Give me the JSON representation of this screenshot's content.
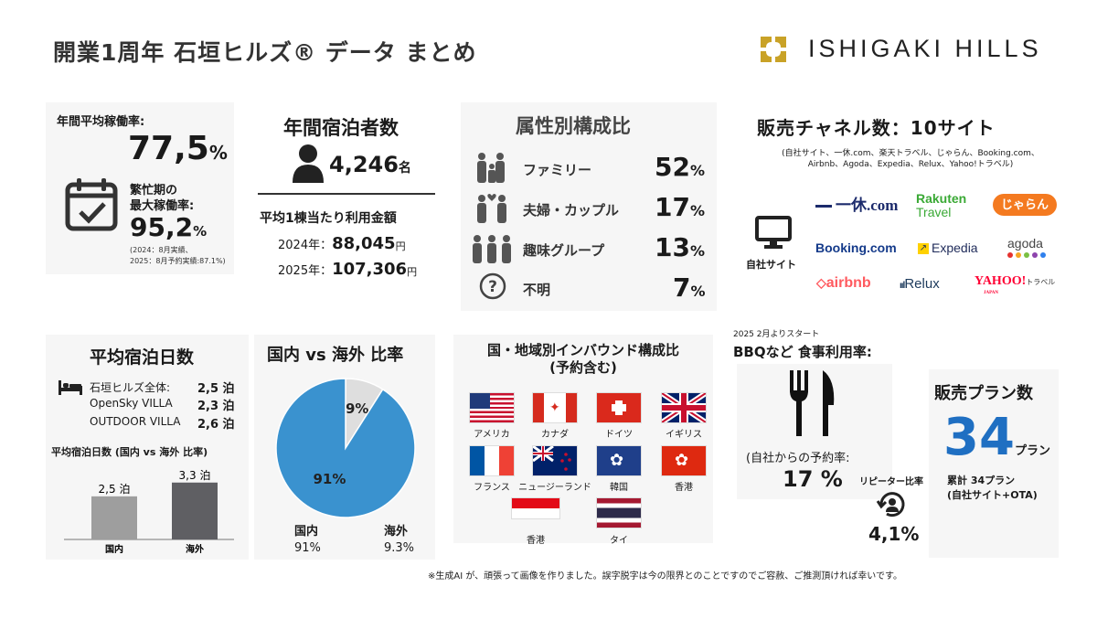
{
  "header": {
    "title": "開業1周年 石垣ヒルズ® データ まとめ",
    "brand_name": "ISHIGAKI HILLS",
    "brand_color": "#c9a227"
  },
  "occupancy": {
    "label": "年間平均稼働率:",
    "value": "77,5",
    "unit": "%",
    "peak_label_1": "繁忙期の",
    "peak_label_2": "最大稼働率:",
    "peak_value": "95,2",
    "peak_unit": "%",
    "note_1": "(2024：8月実績、",
    "note_2": "2025：8月予約実績:87.1%)",
    "icon": "calendar-check-icon"
  },
  "guests": {
    "label": "年間宿泊者数",
    "value": "4,246",
    "unit": "名",
    "icon": "person-icon",
    "avg_label": "平均1棟当たり利用金額",
    "years": [
      {
        "label": "2024年：",
        "value": "88,045",
        "unit": "円"
      },
      {
        "label": "2025年：",
        "value": "107,306",
        "unit": "円"
      }
    ]
  },
  "attributes": {
    "title": "属性別構成比",
    "items": [
      {
        "label": "ファミリー",
        "value": "52",
        "unit": "%",
        "icon": "family-icon"
      },
      {
        "label": "夫婦・カップル",
        "value": "17",
        "unit": "%",
        "icon": "couple-icon"
      },
      {
        "label": "趣味グループ",
        "value": "13",
        "unit": "%",
        "icon": "group-icon"
      },
      {
        "label": "不明",
        "value": "7",
        "unit": "%",
        "icon": "question-icon"
      }
    ]
  },
  "channels": {
    "title": "販売チャネル数：10サイト",
    "subtitle_1": "(自社サイト、一休.com、楽天トラベル、じゃらん、Booking.com、",
    "subtitle_2": "Airbnb、Agoda、Expedia、Relux、Yahoo!トラベル)",
    "own_site_label": "自社サイト",
    "logos": {
      "ikyu": "一休.com",
      "rakuten_1": "Rakuten",
      "rakuten_2": "Travel",
      "jalan": "じゃらん",
      "booking": "Booking.com",
      "expedia": "Expedia",
      "agoda": "agoda",
      "airbnb": "airbnb",
      "relux": "Relux",
      "yahoo": "YAHOO!",
      "yahoo_sub": "トラベル",
      "yahoo_japan": "JAPAN"
    }
  },
  "stay": {
    "title": "平均宿泊日数",
    "rows": [
      {
        "label": "石垣ヒルズ全体:",
        "value": "2,5 泊"
      },
      {
        "label": "OpenSky VILLA",
        "value": "2,3 泊"
      },
      {
        "label": "OUTDOOR VILLA",
        "value": "2,6 泊"
      }
    ],
    "chart_title": "平均宿泊日数 (国内 vs 海外 比率)"
  },
  "ratio": {
    "title": "国内 vs 海外 比率",
    "domestic_label": "国内",
    "domestic_value": "91%",
    "overseas_label": "海外",
    "overseas_value": "9.3%",
    "slice_big": "91%",
    "slice_small": "9%"
  },
  "inbound": {
    "title_1": "国・地域別インバウンド構成比",
    "title_2": "(予約含む)",
    "countries": [
      "アメリカ",
      "カナダ",
      "ドイツ",
      "イギリス",
      "フランス",
      "ニュージーランド",
      "韓国",
      "香港",
      "香港",
      "タイ"
    ]
  },
  "bbq": {
    "start_note": "2025 2月よりスタート",
    "title": "BBQなど 食事利用率:",
    "sub_label": "(自社からの予約率:",
    "value": "17 %",
    "icon": "fork-knife-icon"
  },
  "repeater": {
    "label": "リピーター比率",
    "value": "4,1%",
    "icon": "repeat-user-icon"
  },
  "plans": {
    "title": "販売プラン数",
    "value": "34",
    "unit": "プラン",
    "note_1": "累計 34プラン",
    "note_2": "(自社サイト+OTA)"
  },
  "footer": {
    "note": "※生成AI が、頑張って画像を作りました。誤字脱字は今の限界とのことですのでご容赦、ご推測頂ければ幸いです。"
  },
  "chart_data": [
    {
      "type": "bar",
      "title": "平均宿泊日数 (国内 vs 海外 比率)",
      "categories": [
        "国内",
        "海外"
      ],
      "values": [
        2.5,
        3.3
      ],
      "data_labels": [
        "2,5 泊",
        "3,3 泊"
      ],
      "colors": [
        "#9e9e9e",
        "#5f5f63"
      ],
      "ylim": [
        0,
        3.5
      ]
    },
    {
      "type": "pie",
      "title": "国内 vs 海外 比率",
      "categories": [
        "国内",
        "海外"
      ],
      "values": [
        91,
        9
      ],
      "data_labels": [
        "91%",
        "9%"
      ],
      "colors": [
        "#3a92cf",
        "#dedede"
      ]
    }
  ]
}
